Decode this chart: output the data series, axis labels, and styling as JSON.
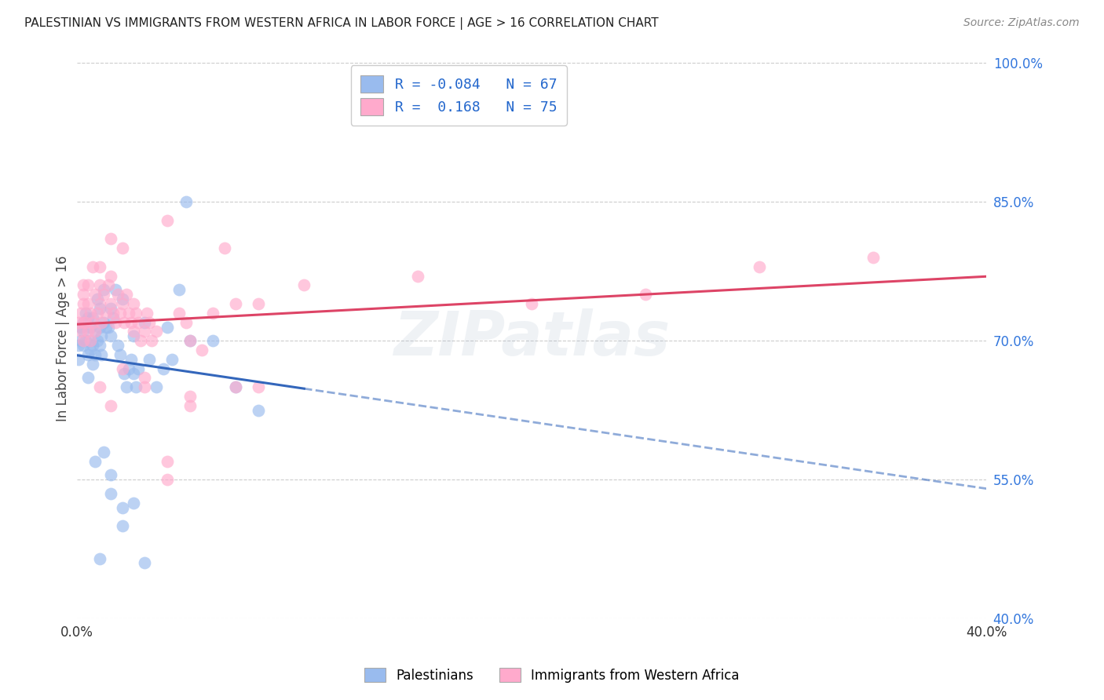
{
  "title": "PALESTINIAN VS IMMIGRANTS FROM WESTERN AFRICA IN LABOR FORCE | AGE > 16 CORRELATION CHART",
  "source": "Source: ZipAtlas.com",
  "ylabel": "In Labor Force | Age > 16",
  "xmin": 0.0,
  "xmax": 0.4,
  "ymin": 0.4,
  "ymax": 1.005,
  "ytick_vals": [
    0.4,
    0.55,
    0.7,
    0.85,
    1.0
  ],
  "ytick_labels": [
    "40.0%",
    "55.0%",
    "70.0%",
    "85.0%",
    "100.0%"
  ],
  "xtick_vals": [
    0.0,
    0.1,
    0.2,
    0.3,
    0.4
  ],
  "xtick_labels": [
    "0.0%",
    "",
    "",
    "",
    "40.0%"
  ],
  "blue_R": -0.084,
  "blue_N": 67,
  "pink_R": 0.168,
  "pink_N": 75,
  "blue_color": "#99BBEE",
  "pink_color": "#FFAACC",
  "blue_line_color": "#3366BB",
  "pink_line_color": "#DD4466",
  "blue_label": "Palestinians",
  "pink_label": "Immigrants from Western Africa",
  "background_color": "#FFFFFF",
  "grid_color": "#CCCCCC",
  "watermark": "ZIPatlas",
  "blue_x": [
    0.001,
    0.001,
    0.002,
    0.002,
    0.003,
    0.003,
    0.003,
    0.004,
    0.004,
    0.005,
    0.005,
    0.005,
    0.006,
    0.006,
    0.006,
    0.007,
    0.007,
    0.007,
    0.008,
    0.008,
    0.009,
    0.009,
    0.01,
    0.01,
    0.01,
    0.011,
    0.011,
    0.012,
    0.012,
    0.013,
    0.014,
    0.015,
    0.015,
    0.016,
    0.017,
    0.018,
    0.019,
    0.02,
    0.021,
    0.022,
    0.023,
    0.024,
    0.025,
    0.025,
    0.026,
    0.027,
    0.03,
    0.032,
    0.035,
    0.038,
    0.04,
    0.042,
    0.045,
    0.048,
    0.05,
    0.06,
    0.07,
    0.08,
    0.008,
    0.012,
    0.015,
    0.02,
    0.025,
    0.03,
    0.02,
    0.015,
    0.01
  ],
  "blue_y": [
    0.695,
    0.68,
    0.715,
    0.7,
    0.72,
    0.71,
    0.695,
    0.73,
    0.7,
    0.725,
    0.685,
    0.66,
    0.715,
    0.7,
    0.69,
    0.725,
    0.695,
    0.675,
    0.71,
    0.685,
    0.745,
    0.7,
    0.735,
    0.715,
    0.695,
    0.705,
    0.685,
    0.755,
    0.72,
    0.715,
    0.715,
    0.735,
    0.705,
    0.725,
    0.755,
    0.695,
    0.685,
    0.745,
    0.665,
    0.65,
    0.67,
    0.68,
    0.705,
    0.665,
    0.65,
    0.67,
    0.72,
    0.68,
    0.65,
    0.67,
    0.715,
    0.68,
    0.755,
    0.85,
    0.7,
    0.7,
    0.65,
    0.625,
    0.57,
    0.58,
    0.555,
    0.52,
    0.525,
    0.46,
    0.5,
    0.535,
    0.465
  ],
  "pink_x": [
    0.001,
    0.002,
    0.002,
    0.003,
    0.003,
    0.004,
    0.005,
    0.005,
    0.005,
    0.006,
    0.006,
    0.007,
    0.007,
    0.008,
    0.008,
    0.009,
    0.01,
    0.01,
    0.011,
    0.012,
    0.013,
    0.014,
    0.015,
    0.015,
    0.016,
    0.017,
    0.018,
    0.019,
    0.02,
    0.021,
    0.022,
    0.023,
    0.024,
    0.025,
    0.025,
    0.026,
    0.027,
    0.028,
    0.03,
    0.031,
    0.032,
    0.033,
    0.035,
    0.04,
    0.045,
    0.048,
    0.05,
    0.055,
    0.06,
    0.065,
    0.07,
    0.08,
    0.1,
    0.15,
    0.2,
    0.25,
    0.3,
    0.35,
    0.01,
    0.015,
    0.02,
    0.03,
    0.03,
    0.05,
    0.05,
    0.04,
    0.04,
    0.07,
    0.08,
    0.01,
    0.015,
    0.02,
    0.003,
    0.003,
    0.003
  ],
  "pink_y": [
    0.72,
    0.71,
    0.73,
    0.7,
    0.75,
    0.72,
    0.74,
    0.76,
    0.71,
    0.73,
    0.7,
    0.72,
    0.78,
    0.75,
    0.71,
    0.73,
    0.76,
    0.74,
    0.72,
    0.75,
    0.73,
    0.76,
    0.77,
    0.74,
    0.73,
    0.72,
    0.75,
    0.73,
    0.74,
    0.72,
    0.75,
    0.73,
    0.72,
    0.74,
    0.71,
    0.73,
    0.72,
    0.7,
    0.71,
    0.73,
    0.72,
    0.7,
    0.71,
    0.83,
    0.73,
    0.72,
    0.7,
    0.69,
    0.73,
    0.8,
    0.74,
    0.74,
    0.76,
    0.77,
    0.74,
    0.75,
    0.78,
    0.79,
    0.65,
    0.63,
    0.67,
    0.66,
    0.65,
    0.64,
    0.63,
    0.57,
    0.55,
    0.65,
    0.65,
    0.78,
    0.81,
    0.8,
    0.76,
    0.74,
    0.72
  ]
}
